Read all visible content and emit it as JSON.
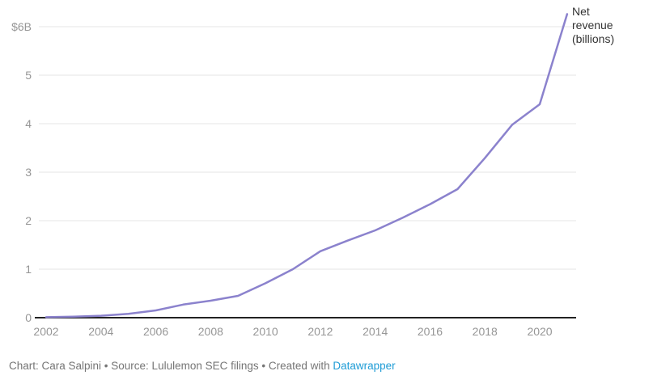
{
  "colors": {
    "line": "#8b82cd",
    "gridline": "#e4e4e4",
    "axis_baseline": "#222222",
    "tick_label": "#969696",
    "annotation_text": "#333333",
    "footer_text": "#757575",
    "link": "#1e9cd6",
    "background": "#ffffff"
  },
  "chart_data": {
    "type": "line",
    "title": "",
    "annotation": "Net revenue (billions)",
    "series_name": "Net revenue",
    "x": [
      2002,
      2003,
      2004,
      2005,
      2006,
      2007,
      2008,
      2009,
      2010,
      2011,
      2012,
      2013,
      2014,
      2015,
      2016,
      2017,
      2018,
      2019,
      2020,
      2021
    ],
    "series": [
      {
        "name": "Net revenue (billions)",
        "values": [
          0.01,
          0.02,
          0.04,
          0.08,
          0.15,
          0.27,
          0.35,
          0.45,
          0.71,
          1.0,
          1.37,
          1.59,
          1.8,
          2.06,
          2.34,
          2.65,
          3.29,
          3.98,
          4.4,
          6.26
        ]
      }
    ],
    "xlim": [
      2002,
      2021
    ],
    "ylim": [
      0,
      6.4
    ],
    "y_ticks": [
      0,
      1,
      2,
      3,
      4,
      5,
      6
    ],
    "y_tick_labels": [
      "0",
      "1",
      "2",
      "3",
      "4",
      "5",
      "$6B"
    ],
    "x_ticks": [
      2002,
      2004,
      2006,
      2008,
      2010,
      2012,
      2014,
      2016,
      2018,
      2020
    ],
    "x_tick_labels": [
      "2002",
      "2004",
      "2006",
      "2008",
      "2010",
      "2012",
      "2014",
      "2016",
      "2018",
      "2020"
    ],
    "grid": true,
    "legend_position": "none"
  },
  "footer": {
    "byline": "Chart: Cara Salpini • Source: Lululemon SEC filings • Created with ",
    "link_label": "Datawrapper"
  }
}
